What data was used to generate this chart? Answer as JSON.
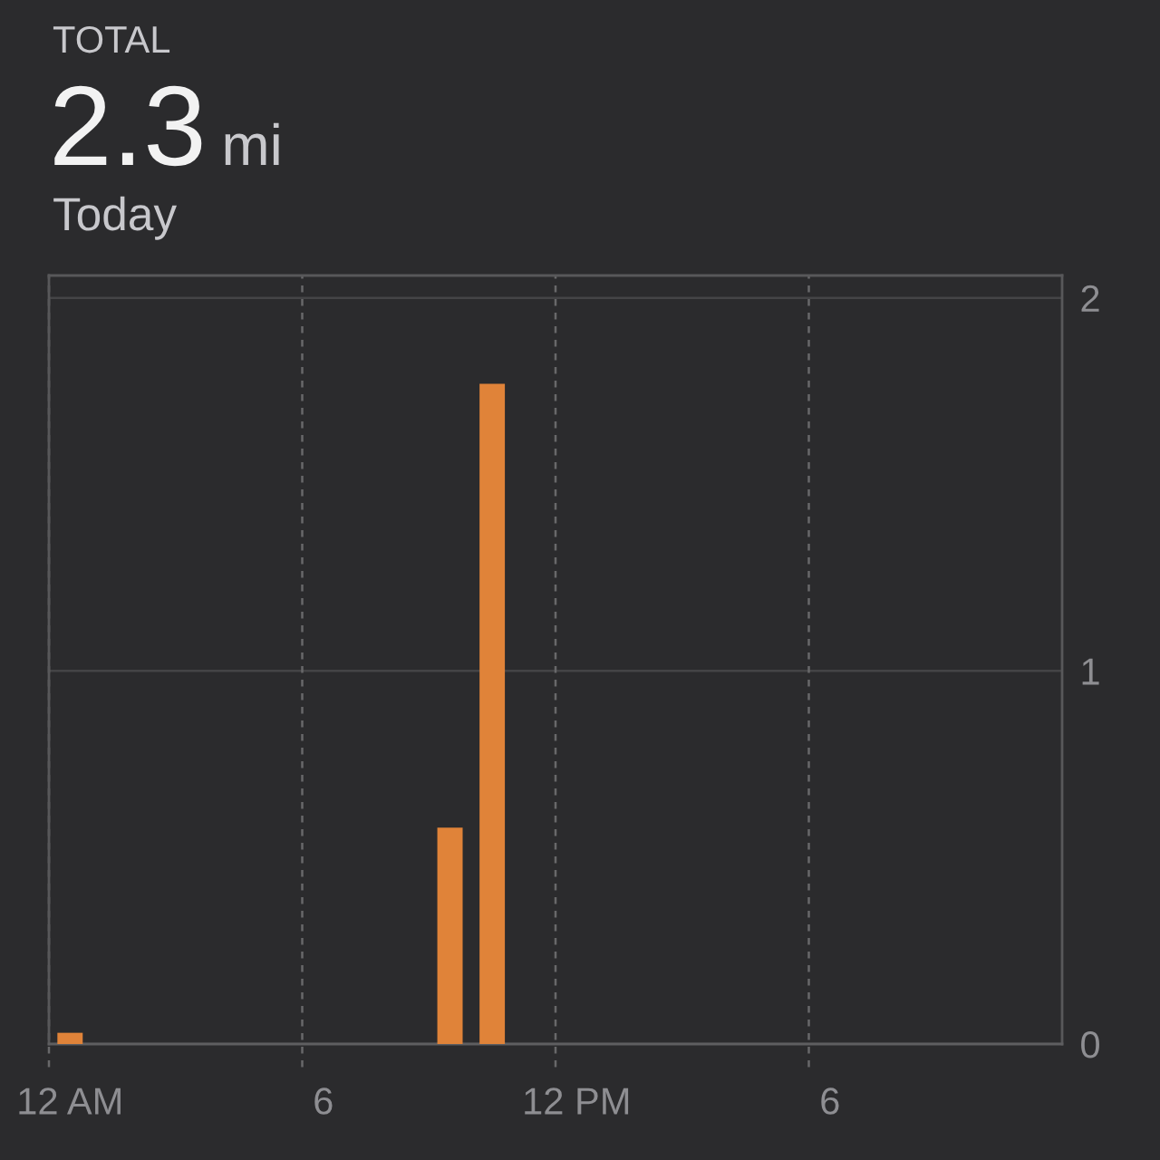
{
  "chart_data": {
    "type": "bar",
    "title": "TOTAL",
    "subtitle": "Today",
    "annotations": [
      "2.3",
      "mi"
    ],
    "categories": [
      "12 AM",
      null,
      null,
      null,
      null,
      null,
      "6",
      null,
      null,
      null,
      null,
      null,
      "12 PM",
      null,
      null,
      null,
      null,
      null,
      "6",
      null,
      null,
      null,
      null,
      null
    ],
    "values": [
      0.03,
      null,
      null,
      null,
      null,
      null,
      null,
      null,
      null,
      0.58,
      1.77,
      null,
      null,
      null,
      null,
      null,
      null,
      null,
      null,
      null,
      null,
      null,
      null,
      null
    ],
    "color": "#e08339",
    "ylim": [
      0,
      2.06
    ],
    "yticks": [
      0,
      1,
      2
    ],
    "grid": true
  }
}
